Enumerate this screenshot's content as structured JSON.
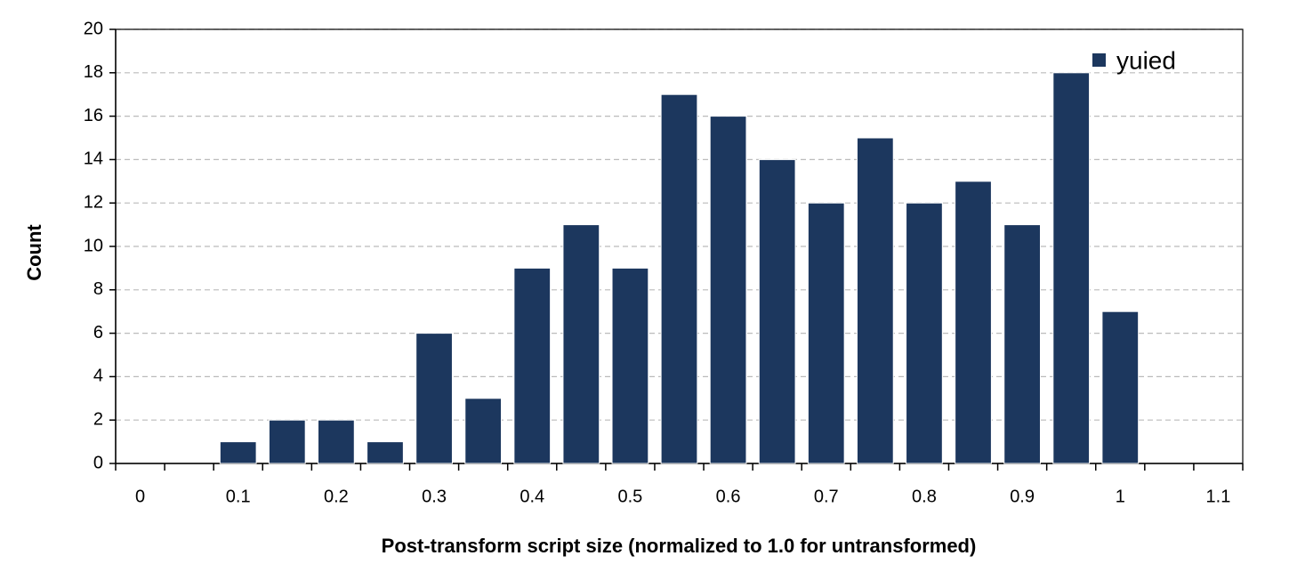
{
  "chart_data": {
    "type": "bar",
    "xlabel": "Post-transform script size (normalized to 1.0 for untransformed)",
    "ylabel": "Count",
    "categories": [
      "0",
      null,
      "0.1",
      null,
      "0.2",
      null,
      "0.3",
      null,
      "0.4",
      null,
      "0.5",
      null,
      "0.6",
      null,
      "0.7",
      null,
      "0.8",
      null,
      "0.9",
      null,
      "1",
      null,
      "1.1"
    ],
    "series": [
      {
        "name": "yuied",
        "color": "#1c375e",
        "values": [
          0,
          0,
          1,
          2,
          2,
          1,
          6,
          3,
          9,
          11,
          9,
          17,
          16,
          14,
          12,
          15,
          12,
          13,
          11,
          18,
          7,
          0,
          0
        ]
      }
    ],
    "ylim": [
      0,
      20
    ],
    "yticks": [
      0,
      2,
      4,
      6,
      8,
      10,
      12,
      14,
      16,
      18,
      20
    ],
    "grid": true,
    "legend": "top-right"
  }
}
